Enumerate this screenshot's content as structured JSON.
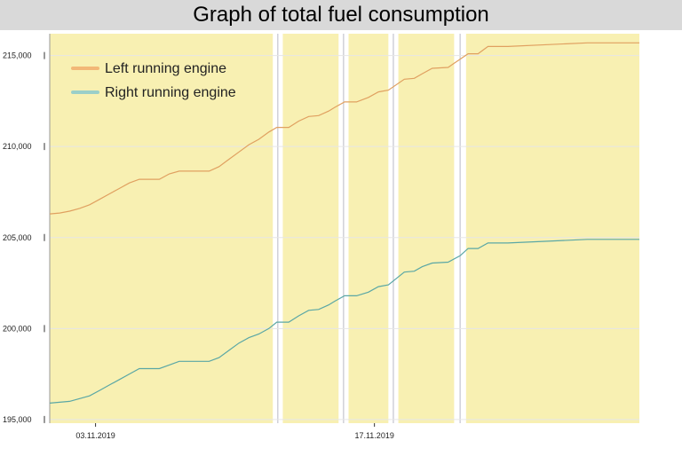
{
  "chart_data": {
    "type": "line",
    "title": "Graph of total fuel consumption",
    "xlabel": "",
    "ylabel": "",
    "ylim": [
      194800,
      216200
    ],
    "y_ticks": [
      {
        "value": 195000,
        "label": "195,000"
      },
      {
        "value": 200000,
        "label": "200,000"
      },
      {
        "value": 205000,
        "label": "205,000"
      },
      {
        "value": 210000,
        "label": "210,000"
      },
      {
        "value": 215000,
        "label": "215,000"
      }
    ],
    "x_range_days": [
      0,
      29.6
    ],
    "x_ticks": [
      {
        "day": 2.3,
        "label": "03.11.2019"
      },
      {
        "day": 16.3,
        "label": "17.11.2019"
      }
    ],
    "legend_position": "top-left",
    "active_periods": [
      [
        0,
        11.2
      ],
      [
        11.7,
        14.5
      ],
      [
        15.0,
        17.0
      ],
      [
        17.5,
        20.3
      ],
      [
        20.9,
        29.6
      ]
    ],
    "series": [
      {
        "name": "Left running engine",
        "color": "#e0a060",
        "legend_color": "#f2b877",
        "points": [
          [
            0,
            206300
          ],
          [
            0.5,
            206350
          ],
          [
            1,
            206450
          ],
          [
            1.5,
            206600
          ],
          [
            2,
            206800
          ],
          [
            2.5,
            207100
          ],
          [
            3,
            207400
          ],
          [
            3.5,
            207700
          ],
          [
            4,
            208000
          ],
          [
            4.5,
            208200
          ],
          [
            5.5,
            208200
          ],
          [
            6,
            208500
          ],
          [
            6.5,
            208650
          ],
          [
            7,
            208650
          ],
          [
            8,
            208650
          ],
          [
            8.5,
            208900
          ],
          [
            9,
            209300
          ],
          [
            9.5,
            209700
          ],
          [
            10,
            210100
          ],
          [
            10.5,
            210400
          ],
          [
            11,
            210800
          ],
          [
            11.4,
            211050
          ],
          [
            12,
            211050
          ],
          [
            12.5,
            211400
          ],
          [
            13,
            211650
          ],
          [
            13.5,
            211700
          ],
          [
            14,
            211950
          ],
          [
            14.3,
            212150
          ],
          [
            14.8,
            212450
          ],
          [
            15.4,
            212450
          ],
          [
            16,
            212700
          ],
          [
            16.5,
            213000
          ],
          [
            17,
            213100
          ],
          [
            17.8,
            213700
          ],
          [
            18.3,
            213750
          ],
          [
            18.7,
            214000
          ],
          [
            19.2,
            214300
          ],
          [
            20,
            214350
          ],
          [
            20.6,
            214800
          ],
          [
            21.0,
            215100
          ],
          [
            21.5,
            215100
          ],
          [
            22,
            215500
          ],
          [
            23,
            215500
          ],
          [
            25,
            215600
          ],
          [
            27,
            215700
          ],
          [
            29.6,
            215700
          ]
        ]
      },
      {
        "name": "Right running engine",
        "color": "#5aa7a5",
        "legend_color": "#9bcfc9",
        "points": [
          [
            0,
            195900
          ],
          [
            1,
            196000
          ],
          [
            2,
            196300
          ],
          [
            2.5,
            196600
          ],
          [
            3,
            196900
          ],
          [
            3.5,
            197200
          ],
          [
            4,
            197500
          ],
          [
            4.5,
            197800
          ],
          [
            5.5,
            197800
          ],
          [
            6,
            198000
          ],
          [
            6.5,
            198200
          ],
          [
            7,
            198200
          ],
          [
            8,
            198200
          ],
          [
            8.5,
            198400
          ],
          [
            9,
            198800
          ],
          [
            9.5,
            199200
          ],
          [
            10,
            199500
          ],
          [
            10.5,
            199700
          ],
          [
            11,
            200000
          ],
          [
            11.4,
            200350
          ],
          [
            12,
            200350
          ],
          [
            12.5,
            200700
          ],
          [
            13,
            201000
          ],
          [
            13.5,
            201050
          ],
          [
            14,
            201300
          ],
          [
            14.3,
            201500
          ],
          [
            14.8,
            201800
          ],
          [
            15.4,
            201800
          ],
          [
            16,
            202000
          ],
          [
            16.5,
            202300
          ],
          [
            17,
            202400
          ],
          [
            17.8,
            203100
          ],
          [
            18.3,
            203150
          ],
          [
            18.7,
            203400
          ],
          [
            19.2,
            203600
          ],
          [
            20,
            203650
          ],
          [
            20.6,
            204000
          ],
          [
            21.0,
            204400
          ],
          [
            21.5,
            204400
          ],
          [
            22,
            204700
          ],
          [
            23,
            204700
          ],
          [
            25,
            204800
          ],
          [
            27,
            204900
          ],
          [
            29.6,
            204900
          ]
        ]
      }
    ]
  }
}
